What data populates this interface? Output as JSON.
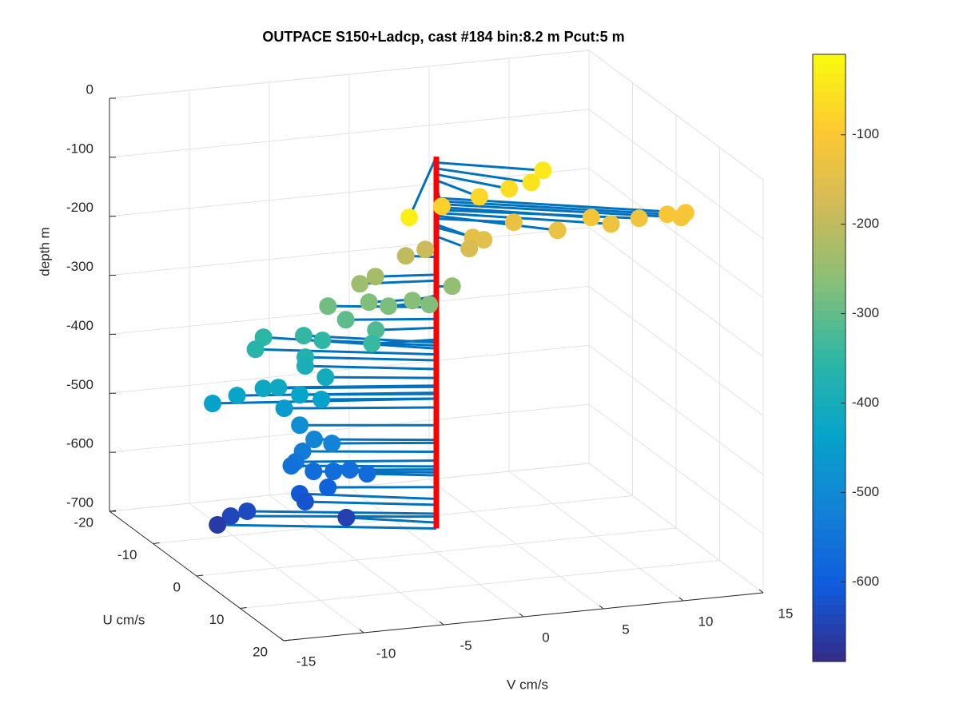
{
  "chart_data": {
    "type": "scatter3d",
    "title": "OUTPACE S150+Ladcp, cast #184 bin:8.2 m  Pcut:5 m",
    "xlabel": "V cm/s",
    "ylabel": "U cm/s",
    "zlabel": "depth m",
    "xlim": [
      -15,
      15
    ],
    "xticks": [
      -15,
      -10,
      -5,
      0,
      5,
      10,
      15
    ],
    "ylim": [
      -20,
      20
    ],
    "yticks": [
      -20,
      -10,
      0,
      10,
      20
    ],
    "zlim": [
      -700,
      0
    ],
    "zticks": [
      -700,
      -600,
      -500,
      -400,
      -300,
      -200,
      -100,
      0
    ],
    "grid": true,
    "line_color": "#0072bd",
    "profile_color": "#ff0000",
    "clim": [
      -689,
      -10
    ],
    "cticks": [
      -600,
      -500,
      -400,
      -300,
      -200,
      -100
    ],
    "colormap": [
      "#352a87",
      "#0f5cdd",
      "#1481d6",
      "#06a4ca",
      "#2eb7a4",
      "#87bf77",
      "#d1bb59",
      "#fec832",
      "#f9fb0e"
    ],
    "v": [
      5.3,
      4.2,
      2.95,
      1.15,
      -1.2,
      -6,
      12.65,
      12.5,
      11.75,
      10.55,
      8.8,
      7.75,
      5.6,
      4.0,
      1.7,
      1.05,
      0.9,
      -1.6,
      -0.7,
      0.9,
      -3.5,
      -4.45,
      -0.85,
      -1.7,
      -3.0,
      -4.0,
      -5.9,
      -5.05,
      -3.5,
      -3.85,
      -6.8,
      -5.9,
      -8.7,
      -9.6,
      -7.0,
      -7.0,
      -6.05,
      -12.7,
      -11.2,
      -9.65,
      -8.85,
      -7.6,
      -6.4,
      -8.45,
      -7.53,
      -6.7,
      -7.35,
      -7.85,
      -5.8,
      -7.95,
      -6.7,
      -5.6,
      -4.8,
      -3.7,
      -6.0,
      -7.15,
      -7.0,
      -10.25,
      -11.3,
      -11.8,
      -4.6
    ],
    "u": [
      5.03,
      6.38,
      5.9,
      5.66,
      5.64,
      15.8,
      10.8,
      10.36,
      9.92,
      7.83,
      7.81,
      7.12,
      7.27,
      3.09,
      4.64,
      4.5,
      4.24,
      -1.15,
      0.04,
      0.33,
      -1.15,
      -1.22,
      1.5,
      0.76,
      0.02,
      -0.78,
      -3.24,
      -2.26,
      -1.04,
      -0.67,
      -5.5,
      -4.5,
      -7.77,
      -6.31,
      -4.4,
      -4.42,
      -3.24,
      -4.77,
      -4.66,
      -4.29,
      -3.79,
      -3.48,
      -2.9,
      -3.92,
      -3.72,
      -3.46,
      -3.74,
      -3.5,
      -2.7,
      -4.13,
      -3.61,
      -3.07,
      -2.24,
      -2.31,
      -2.9,
      -5.14,
      -4.42,
      -5.81,
      -5.75,
      -6.94,
      -3.79
    ],
    "depth": [
      -40,
      -50,
      -60,
      -70,
      -80,
      -30,
      -100,
      -110,
      -105,
      -120,
      -125,
      -115,
      -130,
      -135,
      -150,
      -145,
      -165,
      -200,
      -185,
      -250,
      -230,
      -240,
      -270,
      -265,
      -275,
      -270,
      -285,
      -305,
      -320,
      -340,
      -345,
      -350,
      -355,
      -365,
      -375,
      -390,
      -405,
      -440,
      -430,
      -420,
      -418,
      -432,
      -440,
      -455,
      -485,
      -510,
      -530,
      -545,
      -515,
      -555,
      -565,
      -565,
      -560,
      -570,
      -590,
      -610,
      -620,
      -635,
      -640,
      -660,
      -650
    ]
  }
}
